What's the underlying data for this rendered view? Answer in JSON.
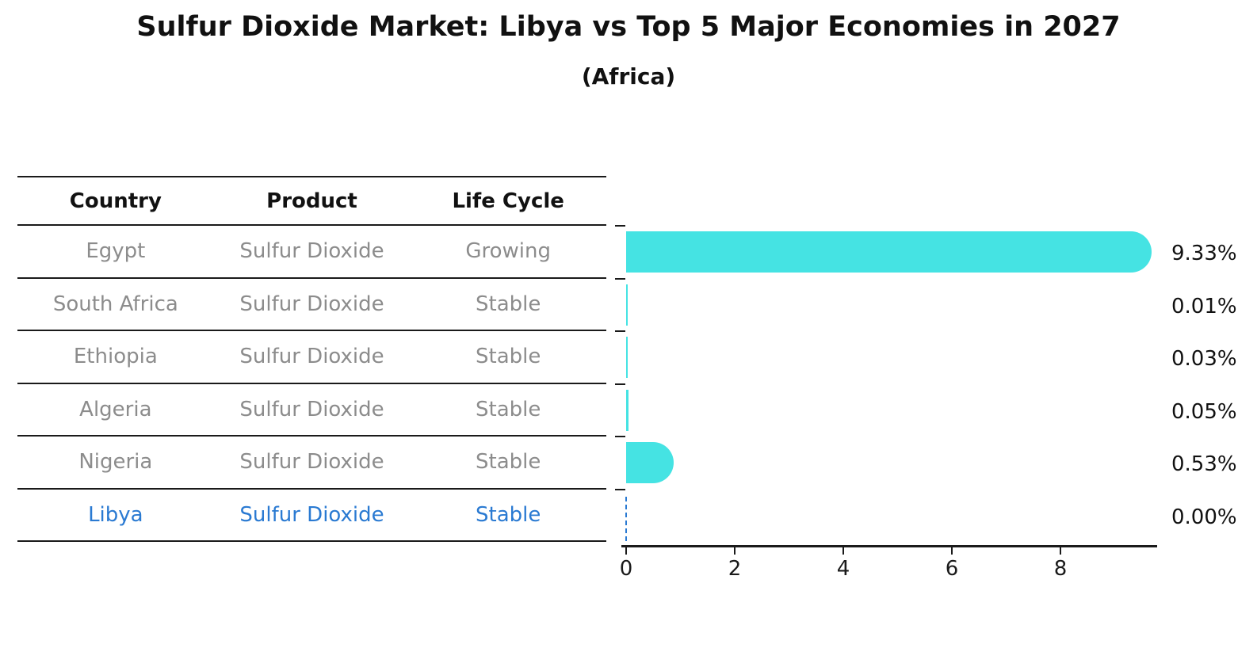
{
  "title": "Sulfur Dioxide Market: Libya vs Top 5 Major Economies in 2027",
  "subtitle": "(Africa)",
  "table": {
    "headers": [
      "Country",
      "Product",
      "Life Cycle"
    ],
    "rows": [
      {
        "country": "Egypt",
        "product": "Sulfur Dioxide",
        "life_cycle": "Growing",
        "highlighted": false
      },
      {
        "country": "South Africa",
        "product": "Sulfur Dioxide",
        "life_cycle": "Stable",
        "highlighted": false
      },
      {
        "country": "Ethiopia",
        "product": "Sulfur Dioxide",
        "life_cycle": "Stable",
        "highlighted": false
      },
      {
        "country": "Algeria",
        "product": "Sulfur Dioxide",
        "life_cycle": "Stable",
        "highlighted": false
      },
      {
        "country": "Nigeria",
        "product": "Sulfur Dioxide",
        "life_cycle": "Stable",
        "highlighted": false
      },
      {
        "country": "Libya",
        "product": "Sulfur Dioxide",
        "life_cycle": "Stable",
        "highlighted": true
      }
    ]
  },
  "chart_data": {
    "type": "bar",
    "orientation": "horizontal",
    "title": "Sulfur Dioxide Market: Libya vs Top 5 Major Economies in 2027",
    "subtitle": "(Africa)",
    "categories": [
      "Egypt",
      "South Africa",
      "Ethiopia",
      "Algeria",
      "Nigeria",
      "Libya"
    ],
    "values": [
      9.33,
      0.01,
      0.03,
      0.05,
      0.53,
      0.0
    ],
    "value_labels": [
      "9.33%",
      "0.01%",
      "0.03%",
      "0.05%",
      "0.53%",
      "0.00%"
    ],
    "xlabel": "",
    "ylabel": "",
    "xlim": [
      0,
      9.8
    ],
    "xticks": [
      "0",
      "2",
      "4",
      "6",
      "8"
    ],
    "grid": false,
    "legend": false,
    "bar_color": "#45e3e3",
    "highlight_color": "#2a7ad2",
    "highlight_marker": "dashed-zero-line-for-libya"
  },
  "colors": {
    "background": "#ffffff",
    "bar_cyan": "#45e3e3",
    "libya_blue": "#2a7ad2",
    "table_gray": "#8c8c8c",
    "line_black": "#1a1a1a"
  }
}
